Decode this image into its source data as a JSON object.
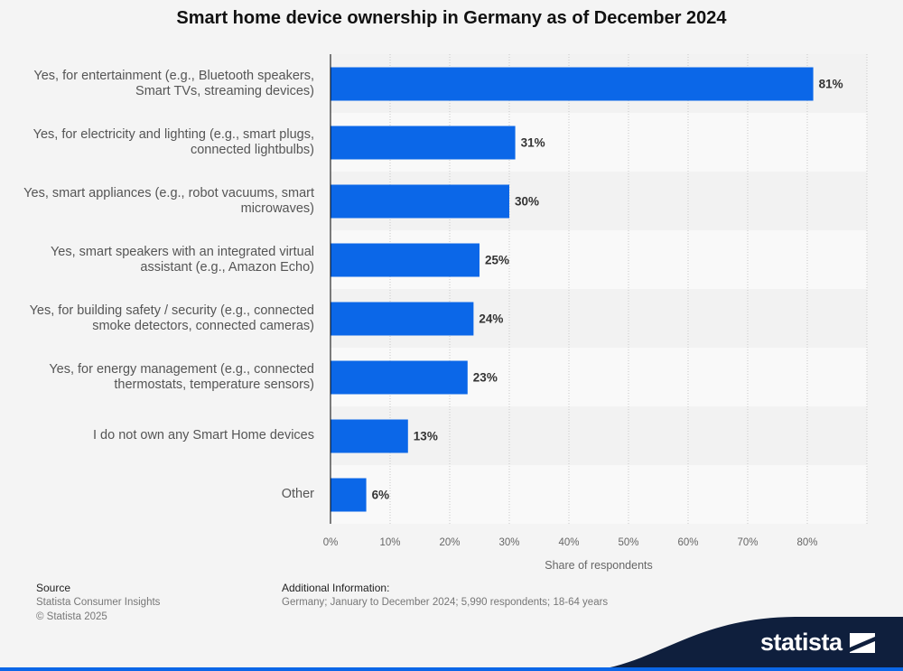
{
  "header": {
    "title": "Smart home device ownership in Germany as of December 2024"
  },
  "chart_data": {
    "type": "bar",
    "orientation": "horizontal",
    "title": "Smart home device ownership in Germany as of December 2024",
    "xlabel": "Share of respondents",
    "ylabel": "",
    "xlim": [
      0,
      90
    ],
    "ticks": [
      0,
      10,
      20,
      30,
      40,
      50,
      60,
      70,
      80
    ],
    "tick_labels": [
      "0%",
      "10%",
      "20%",
      "30%",
      "40%",
      "50%",
      "60%",
      "70%",
      "80%"
    ],
    "grid": true,
    "categories": [
      "Yes, for entertainment (e.g., Bluetooth speakers, Smart TVs, streaming devices)",
      "Yes, for electricity and lighting (e.g., smart plugs, connected lightbulbs)",
      "Yes, smart appliances (e.g., robot vacuums, smart microwaves)",
      "Yes, smart speakers with an integrated virtual assistant (e.g., Amazon Echo)",
      "Yes, for building safety / security (e.g., connected smoke detectors, connected cameras)",
      "Yes, for energy management (e.g., connected thermostats, temperature sensors)",
      "I do not own any Smart Home devices",
      "Other"
    ],
    "values": [
      81,
      31,
      30,
      25,
      24,
      23,
      13,
      6
    ],
    "value_labels": [
      "81%",
      "31%",
      "30%",
      "25%",
      "24%",
      "23%",
      "13%",
      "6%"
    ],
    "bar_color": "#0b67e8"
  },
  "footer": {
    "source_heading": "Source",
    "source_lines": [
      "Statista Consumer Insights",
      "© Statista 2025"
    ],
    "info_heading": "Additional Information:",
    "info_text": "Germany; January to December 2024; 5,990 respondents; 18-64 years"
  },
  "brand": {
    "name": "statista",
    "accent_color": "#0b67e8",
    "dark_color": "#0f1f3d",
    "icon": "statista-flag-icon"
  }
}
